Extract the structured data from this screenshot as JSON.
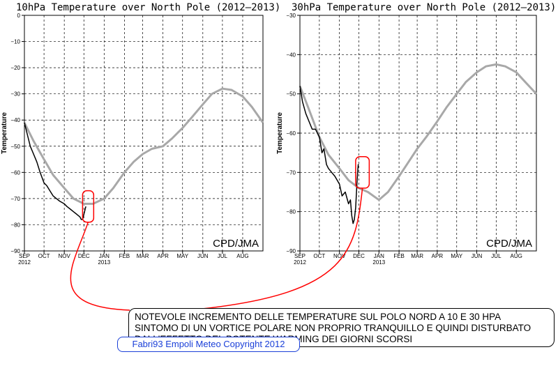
{
  "annotation": {
    "lines": [
      "NOTEVOLE INCREMENTO DELLE TEMPERATURE  SUL POLO NORD A 10 E 30 HPA",
      "SINTOMO DI UN VORTICE POLARE NON PROPRIO TRANQUILLO E QUINDI DISTURBATO",
      "DALL'EFFETTO DEL POTENTE WARMING DEI GIORNI SCORSI"
    ],
    "color": "#ff0000"
  },
  "signature": "Fabri93 Empoli Meteo Copyright 2012",
  "colors": {
    "observed": "#000000",
    "climatology": "#a8a8a8",
    "highlight": "#ff0000",
    "signature": "#1a3fd8"
  },
  "chart_data": [
    {
      "type": "line",
      "title": "10hPa Temperature over North Pole (2012—2013)",
      "ylabel": "Temperature",
      "credit": "CPD/JMA",
      "ylim": [
        -90,
        0
      ],
      "yticks": [
        "0",
        "−10",
        "−20",
        "−30",
        "−40",
        "−50",
        "−60",
        "−70",
        "−80",
        "−90"
      ],
      "xticks": [
        {
          "label": "SEP",
          "sub": "2012"
        },
        {
          "label": "OCT"
        },
        {
          "label": "NOV"
        },
        {
          "label": "DEC"
        },
        {
          "label": "JAN",
          "sub": "2013"
        },
        {
          "label": "FEB"
        },
        {
          "label": "MAR"
        },
        {
          "label": "APR"
        },
        {
          "label": "MAY"
        },
        {
          "label": "JUN"
        },
        {
          "label": "JUL"
        },
        {
          "label": "AUG"
        }
      ],
      "grid": true,
      "series": [
        {
          "x": [
            "2012-09-01",
            "2012-09-15",
            "2012-10-01",
            "2012-10-15",
            "2012-11-01",
            "2012-11-15",
            "2012-12-01",
            "2012-12-15",
            "2013-01-01",
            "2013-01-15",
            "2013-02-01",
            "2013-02-15",
            "2013-03-01",
            "2013-03-15",
            "2013-04-01",
            "2013-04-15",
            "2013-05-01",
            "2013-05-15",
            "2013-06-01",
            "2013-06-15",
            "2013-07-01",
            "2013-07-15",
            "2013-08-01",
            "2013-08-15",
            "2013-09-01"
          ],
          "values": [
            -41,
            -48,
            -55,
            -61,
            -66,
            -70,
            -72,
            -72,
            -70,
            -66,
            -60,
            -56,
            -53,
            -51,
            -50,
            -47,
            -43,
            -39,
            -34,
            -30,
            -28,
            -28.5,
            -31,
            -35,
            -41
          ]
        },
        {
          "x": [
            "2012-09-01",
            "2012-09-05",
            "2012-09-10",
            "2012-09-15",
            "2012-09-20",
            "2012-09-25",
            "2012-10-01",
            "2012-10-05",
            "2012-10-10",
            "2012-10-15",
            "2012-10-20",
            "2012-10-25",
            "2012-11-01",
            "2012-11-05",
            "2012-11-10",
            "2012-11-15",
            "2012-11-20",
            "2012-11-25",
            "2012-11-27",
            "2012-11-29",
            "2012-11-30",
            "2012-12-01",
            "2012-12-02",
            "2012-12-04"
          ],
          "values": [
            -41,
            -45,
            -50,
            -53,
            -56,
            -60,
            -64,
            -65,
            -67,
            -69,
            -70,
            -71,
            -72,
            -73,
            -74,
            -75,
            -76,
            -77,
            -78,
            -78,
            -77,
            -76,
            -75,
            -73
          ]
        }
      ],
      "highlight": {
        "x": [
          "2012-11-29",
          "2012-12-16"
        ],
        "y": [
          -67,
          -79
        ]
      }
    },
    {
      "type": "line",
      "title": "30hPa Temperature over North Pole (2012—2013)",
      "ylabel": "Temperature",
      "credit": "CPD/JMA",
      "ylim": [
        -90,
        -30
      ],
      "yticks": [
        "−30",
        "−40",
        "−50",
        "−60",
        "−70",
        "−80",
        "−90"
      ],
      "xticks": [
        {
          "label": "SEP",
          "sub": "2012"
        },
        {
          "label": "OCT"
        },
        {
          "label": "NOV"
        },
        {
          "label": "DEC"
        },
        {
          "label": "JAN",
          "sub": "2013"
        },
        {
          "label": "FEB"
        },
        {
          "label": "MAR"
        },
        {
          "label": "APR"
        },
        {
          "label": "MAY"
        },
        {
          "label": "JUN"
        },
        {
          "label": "JUL"
        },
        {
          "label": "AUG"
        }
      ],
      "grid": true,
      "series": [
        {
          "x": [
            "2012-09-01",
            "2012-09-15",
            "2012-10-01",
            "2012-10-15",
            "2012-11-01",
            "2012-11-15",
            "2012-12-01",
            "2012-12-15",
            "2013-01-01",
            "2013-01-15",
            "2013-02-01",
            "2013-02-15",
            "2013-03-01",
            "2013-03-15",
            "2013-04-01",
            "2013-04-15",
            "2013-05-01",
            "2013-05-15",
            "2013-06-01",
            "2013-06-15",
            "2013-07-01",
            "2013-07-15",
            "2013-08-01",
            "2013-08-15",
            "2013-09-01"
          ],
          "values": [
            -48,
            -54,
            -61,
            -65.5,
            -69,
            -72,
            -74,
            -75,
            -77,
            -75,
            -71,
            -67.5,
            -64,
            -61,
            -57,
            -53.5,
            -50,
            -47,
            -44.5,
            -43,
            -42.5,
            -43,
            -44.5,
            -47,
            -50
          ]
        },
        {
          "x": [
            "2012-09-01",
            "2012-09-05",
            "2012-09-10",
            "2012-09-15",
            "2012-09-20",
            "2012-09-25",
            "2012-10-01",
            "2012-10-05",
            "2012-10-08",
            "2012-10-12",
            "2012-10-15",
            "2012-10-20",
            "2012-10-25",
            "2012-11-01",
            "2012-11-05",
            "2012-11-10",
            "2012-11-15",
            "2012-11-18",
            "2012-11-20",
            "2012-11-22",
            "2012-11-24",
            "2012-11-26",
            "2012-11-27",
            "2012-11-28",
            "2012-11-29",
            "2012-11-30",
            "2012-12-01"
          ],
          "values": [
            -48,
            -52,
            -55,
            -57,
            -59,
            -59,
            -61,
            -65,
            -64,
            -68,
            -69,
            -70,
            -71,
            -73,
            -76,
            -75,
            -78,
            -77,
            -81,
            -83,
            -82,
            -79,
            -76,
            -73,
            -70,
            -68,
            -68
          ]
        }
      ],
      "highlight": {
        "x": [
          "2012-11-26",
          "2012-12-17"
        ],
        "y": [
          -66,
          -74
        ]
      }
    }
  ]
}
